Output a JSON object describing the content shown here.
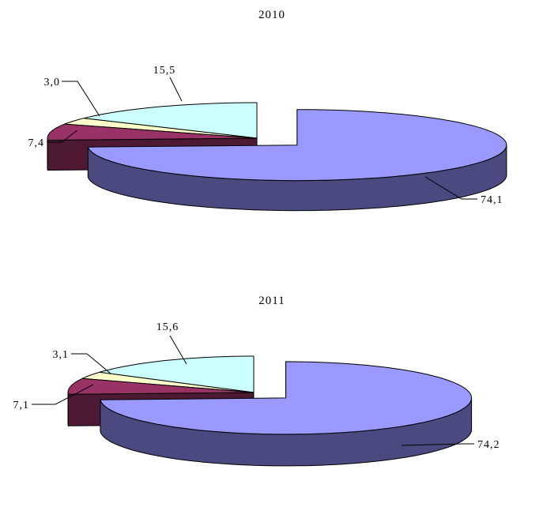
{
  "chart_data": [
    {
      "type": "pie",
      "style": "3d-exploded",
      "title": "2010",
      "series": [
        {
          "value": 74.1,
          "label": "74,1",
          "color": "#9999FF",
          "side_color": "#4A4A80"
        },
        {
          "value": 7.4,
          "label": "7,4",
          "color": "#993366",
          "side_color": "#4D1933"
        },
        {
          "value": 3.0,
          "label": "3,0",
          "color": "#FFFFCC",
          "side_color": "#808066"
        },
        {
          "value": 15.5,
          "label": "15,5",
          "color": "#CCFFFF",
          "side_color": "#668080"
        }
      ],
      "legend": "none"
    },
    {
      "type": "pie",
      "style": "3d-exploded",
      "title": "2011",
      "series": [
        {
          "value": 74.2,
          "label": "74,2",
          "color": "#9999FF",
          "side_color": "#4A4A80"
        },
        {
          "value": 7.1,
          "label": "7,1",
          "color": "#993366",
          "side_color": "#4D1933"
        },
        {
          "value": 3.1,
          "label": "3,1",
          "color": "#FFFFCC",
          "side_color": "#808066"
        },
        {
          "value": 15.6,
          "label": "15,6",
          "color": "#CCFFFF",
          "side_color": "#668080"
        }
      ],
      "legend": "none"
    }
  ]
}
